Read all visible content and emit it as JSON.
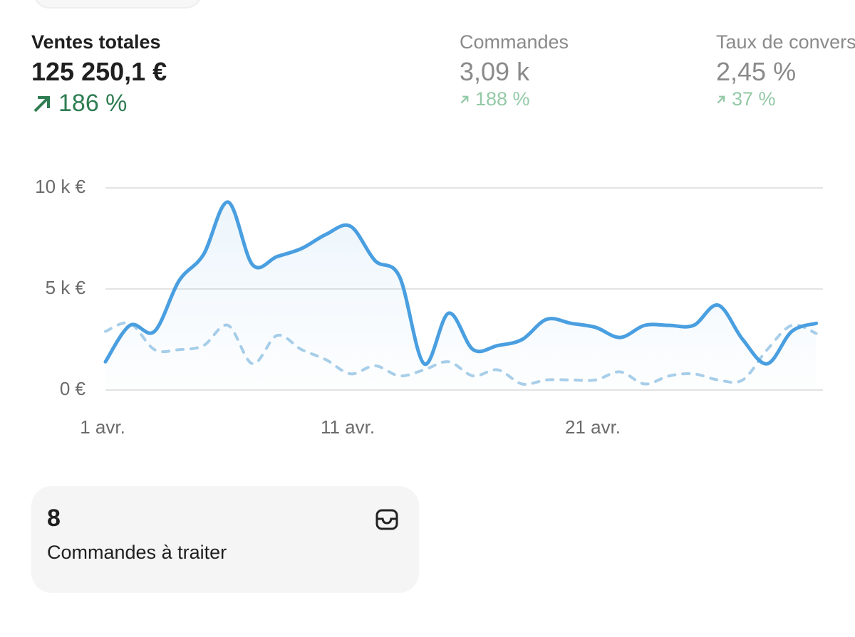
{
  "metrics": [
    {
      "label": "Ventes totales",
      "value": "125 250,1 €",
      "change": "186 %"
    },
    {
      "label": "Commandes",
      "value": "3,09 k",
      "change": "188 %"
    },
    {
      "label": "Taux de conversion",
      "value": "2,45 %",
      "change": "37 %"
    }
  ],
  "chart_data": {
    "type": "line",
    "categories": [
      "1 avr.",
      null,
      null,
      null,
      null,
      null,
      null,
      null,
      null,
      null,
      "11 avr.",
      null,
      null,
      null,
      null,
      null,
      null,
      null,
      null,
      null,
      "21 avr.",
      null,
      null,
      null,
      null,
      null,
      null,
      null,
      null,
      null
    ],
    "series": [
      {
        "color": "#4a9fe0",
        "style": "solid",
        "area": true,
        "values": [
          1400,
          3200,
          2900,
          5400,
          6700,
          9300,
          6200,
          6600,
          7000,
          7700,
          8100,
          6400,
          5600,
          1300,
          3800,
          2000,
          2200,
          2500,
          3500,
          3300,
          3100,
          2600,
          3200,
          3200,
          3200,
          4200,
          2500,
          1300,
          2900,
          3300
        ]
      },
      {
        "color": "#a9cfe9",
        "style": "dashed",
        "area": false,
        "values": [
          2900,
          3300,
          2000,
          2000,
          2200,
          3200,
          1300,
          2700,
          2000,
          1500,
          800,
          1200,
          700,
          1000,
          1400,
          700,
          1000,
          300,
          500,
          500,
          500,
          900,
          300,
          700,
          800,
          500,
          500,
          2000,
          3200,
          2800
        ]
      }
    ],
    "ylim": [
      0,
      10000
    ],
    "yticks": [
      {
        "value": 0,
        "label": "0 €"
      },
      {
        "value": 5000,
        "label": "5 k €"
      },
      {
        "value": 10000,
        "label": "10 k €"
      }
    ],
    "grid": true
  },
  "task_card": {
    "count": 8,
    "label": "Commandes à traiter"
  }
}
